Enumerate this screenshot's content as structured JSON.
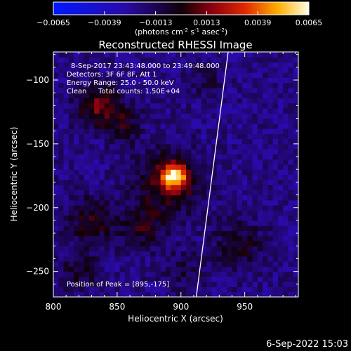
{
  "chart_data": {
    "type": "heatmap",
    "title": "Reconstructed RHESSI Image",
    "xlabel": "Heliocentric X (arcsec)",
    "ylabel": "Heliocentric Y (arcsec)",
    "xlim": [
      800,
      992
    ],
    "ylim": [
      -270,
      -78
    ],
    "x_ticks": [
      800,
      850,
      900,
      950
    ],
    "y_ticks": [
      -100,
      -150,
      -200,
      -250
    ],
    "colorbar": {
      "min": -0.0065,
      "max": 0.0065,
      "ticks": [
        "-0.0065",
        "-0.0039",
        "-0.0013",
        "0.0013",
        "0.0039",
        "0.0065"
      ],
      "label_main": "(photons cm",
      "label_exp1": "-2",
      "label_mid1": " s",
      "label_exp2": "-1",
      "label_mid2": " asec",
      "label_exp3": "-2",
      "label_end": ")"
    },
    "peak": {
      "x": 895,
      "y": -175
    },
    "sources": [
      {
        "x": 895,
        "y": -175,
        "amp": 0.0065,
        "sigma": 7
      },
      {
        "x": 890,
        "y": -180,
        "amp": 0.0028,
        "sigma": 18
      },
      {
        "x": 835,
        "y": -120,
        "amp": 0.0032,
        "sigma": 12
      },
      {
        "x": 855,
        "y": -135,
        "amp": 0.0018,
        "sigma": 10
      },
      {
        "x": 830,
        "y": -210,
        "amp": 0.0022,
        "sigma": 14
      },
      {
        "x": 870,
        "y": -215,
        "amp": 0.002,
        "sigma": 12
      },
      {
        "x": 820,
        "y": -250,
        "amp": 0.0016,
        "sigma": 12
      },
      {
        "x": 945,
        "y": -230,
        "amp": 0.002,
        "sigma": 14
      },
      {
        "x": 920,
        "y": -100,
        "amp": 0.0012,
        "sigma": 10
      },
      {
        "x": 900,
        "y": -250,
        "amp": 0.0012,
        "sigma": 12
      }
    ],
    "limb": [
      [
        937,
        -78
      ],
      [
        928,
        -150
      ],
      [
        920,
        -210
      ],
      [
        912,
        -270
      ]
    ],
    "annotations": {
      "line1": "8-Sep-2017 23:43:48.000 to 23:49:48.000",
      "line2": "Detectors: 3F 6F 8F, Att 1",
      "line3": "Energy Range: 25.0 - 50.0 keV",
      "line4_a": "Clean",
      "line4_b": "Total counts: 1.50E+04",
      "peak_label": "Position of Peak = [895,-175]"
    }
  },
  "footer": {
    "timestamp": "6-Sep-2022 15:03"
  }
}
